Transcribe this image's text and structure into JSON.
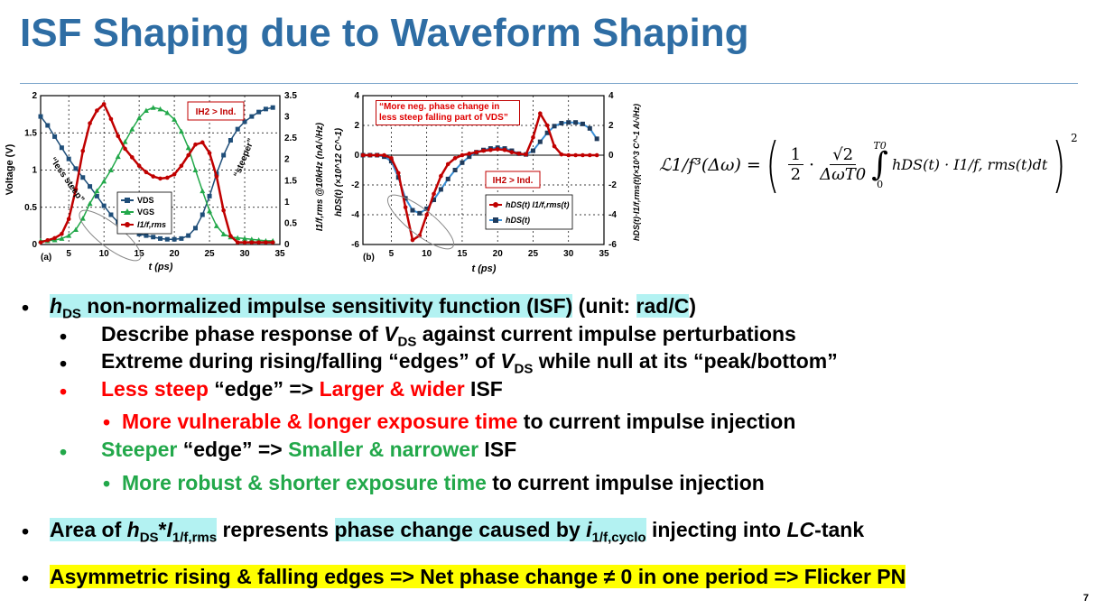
{
  "slide": {
    "title": "ISF Shaping due to Waveform Shaping",
    "page_number": "7"
  },
  "figure_a": {
    "panel": "(a)",
    "y_left_label": "Voltage (V)",
    "y_right_label": "I1/f,rms @10kHz (nA/√Hz)",
    "x_label": "t (ps)",
    "y_left_ticks": [
      "2",
      "1.5",
      "1",
      "0.5",
      "0"
    ],
    "y_right_ticks": [
      "3.5",
      "3",
      "2.5",
      "2",
      "1.5",
      "1",
      "0.5",
      "0"
    ],
    "x_ticks": [
      "5",
      "10",
      "15",
      "20",
      "25",
      "30",
      "35"
    ],
    "annot_box": "IH2 > Ind.",
    "annot_less_steep": "“less steep”",
    "annot_steeper": "“steeper”",
    "legend": [
      "VDS",
      "VGS",
      "I1/f,rms"
    ]
  },
  "figure_b": {
    "panel": "(b)",
    "y_left_label": "hDS(t) (×10^12 C^-1)",
    "y_right_label": "hDS(t)·I1/f,rms(t)(×10^3 C^-1 A/√Hz)",
    "x_label": "t (ps)",
    "y_left_ticks": [
      "4",
      "2",
      "0",
      "-2",
      "-4",
      "-6"
    ],
    "y_right_ticks": [
      "4",
      "2",
      "0",
      "-2",
      "-4",
      "-6"
    ],
    "x_ticks": [
      "5",
      "10",
      "15",
      "20",
      "25",
      "30",
      "35"
    ],
    "annot_quote": "“More neg. phase change in less steep falling part of VDS”",
    "annot_box": "IH2 > Ind.",
    "legend": [
      "hDS(t) I1/f,rms(t)",
      "hDS(t)"
    ]
  },
  "formula": {
    "lhs": "ℒ1/f³(Δω) =",
    "frac1_num": "1",
    "frac1_den": "2",
    "frac2_num": "√2",
    "frac2_den": "ΔωT0",
    "integral_upper": "T0",
    "integral_lower": "0",
    "integrand": "hDS(t) · I1/f, rms(t)dt",
    "power": "2"
  },
  "bullets": {
    "b1_h": "h",
    "b1_sub": "DS",
    "b1_hl": " non-normalized impulse sensitivity function (ISF)",
    "b1_rest": " (unit: ",
    "b1_unit": "rad/C",
    "b1_close": ")",
    "s1_a": "Describe phase response of ",
    "s1_v": "V",
    "s1_sub": "DS",
    "s1_b": " against current impulse perturbations",
    "s2_a": "Extreme during rising/falling “edges” of ",
    "s2_v": "V",
    "s2_sub": "DS",
    "s2_b": " while null at its “peak/bottom”",
    "s3_red1": "Less steep",
    "s3_mid": " “edge” => ",
    "s3_red2": "Larger & wider",
    "s3_end": " ISF",
    "t1_red": "More vulnerable & longer exposure time",
    "t1_end": " to current impulse injection",
    "s4_green1": "Steeper",
    "s4_mid": " “edge” => ",
    "s4_green2": "Smaller & narrower",
    "s4_end": " ISF",
    "t2_green": "More robust & shorter exposure time",
    "t2_end": " to current impulse injection",
    "b2_a": "Area of ",
    "b2_h": "h",
    "b2_sub1": "DS",
    "b2_star": "*",
    "b2_i": "I",
    "b2_sub2": "1/f,rms",
    "b2_mid": " represents ",
    "b2_hl": "phase change caused by ",
    "b2_i2": "i",
    "b2_sub3": "1/f,cyclo",
    "b2_end": " injecting into ",
    "b2_lc": "LC",
    "b2_tank": "-tank",
    "b3": "Asymmetric rising & falling edges => Net phase change ≠ 0 in one period => Flicker PN"
  },
  "colors": {
    "title": "#2e6da4",
    "vds": "#1f4e79",
    "vgs": "#22a84a",
    "i1f": "#c00000",
    "red_text": "#ff0000",
    "green_text": "#22a84a",
    "highlight_cyan": "#b3f2f2",
    "highlight_yellow": "#ffff00"
  },
  "chart_data": [
    {
      "type": "line",
      "panel": "(a)",
      "xlabel": "t (ps)",
      "ylabel": "Voltage (V)",
      "ylabel_right": "I1/f,rms @10kHz (nA/√Hz)",
      "xlim": [
        1,
        35
      ],
      "ylim": [
        0,
        2
      ],
      "ylim_right": [
        0,
        3.5
      ],
      "series": [
        {
          "name": "VDS",
          "axis": "left",
          "x": [
            1,
            2,
            3,
            4,
            5,
            6,
            7,
            8,
            9,
            10,
            11,
            12,
            13,
            14,
            15,
            16,
            17,
            18,
            19,
            20,
            21,
            22,
            23,
            24,
            25,
            26,
            27,
            28,
            29,
            30,
            31,
            32,
            33,
            34
          ],
          "y": [
            1.72,
            1.6,
            1.45,
            1.3,
            1.15,
            1.02,
            0.9,
            0.78,
            0.65,
            0.52,
            0.4,
            0.3,
            0.22,
            0.17,
            0.14,
            0.12,
            0.1,
            0.08,
            0.07,
            0.07,
            0.08,
            0.12,
            0.22,
            0.4,
            0.65,
            0.95,
            1.2,
            1.4,
            1.55,
            1.65,
            1.72,
            1.78,
            1.82,
            1.84
          ]
        },
        {
          "name": "VGS",
          "axis": "left",
          "x": [
            1,
            2,
            3,
            4,
            5,
            6,
            7,
            8,
            9,
            10,
            11,
            12,
            13,
            14,
            15,
            16,
            17,
            18,
            19,
            20,
            21,
            22,
            23,
            24,
            25,
            26,
            27,
            28,
            29,
            30,
            31,
            32,
            33,
            34
          ],
          "y": [
            0.05,
            0.05,
            0.06,
            0.08,
            0.12,
            0.2,
            0.35,
            0.55,
            0.72,
            0.85,
            1.0,
            1.18,
            1.38,
            1.55,
            1.7,
            1.8,
            1.84,
            1.82,
            1.77,
            1.68,
            1.52,
            1.3,
            1.0,
            0.72,
            0.45,
            0.25,
            0.14,
            0.1,
            0.09,
            0.08,
            0.07,
            0.06,
            0.05,
            0.05
          ]
        },
        {
          "name": "I1/f,rms",
          "axis": "right",
          "x": [
            1,
            2,
            3,
            4,
            5,
            6,
            7,
            8,
            9,
            10,
            11,
            12,
            13,
            14,
            15,
            16,
            17,
            18,
            19,
            20,
            21,
            22,
            23,
            24,
            25,
            26,
            27,
            28,
            29,
            30,
            31,
            32,
            33,
            34
          ],
          "y": [
            0.05,
            0.1,
            0.15,
            0.25,
            0.6,
            1.3,
            2.2,
            2.85,
            3.15,
            3.3,
            2.95,
            2.55,
            2.25,
            2.05,
            1.85,
            1.7,
            1.6,
            1.55,
            1.57,
            1.65,
            1.85,
            2.1,
            2.35,
            2.4,
            2.15,
            1.6,
            0.8,
            0.2,
            0.05,
            0.05,
            0.05,
            0.05,
            0.05,
            0.05
          ]
        }
      ]
    },
    {
      "type": "line",
      "panel": "(b)",
      "xlabel": "t (ps)",
      "ylabel": "hDS(t) (×10^12 C^-1)",
      "ylabel_right": "hDS(t)·I1/f,rms(t)(×10^3 C^-1 A/√Hz)",
      "xlim": [
        1,
        35
      ],
      "ylim": [
        -6,
        4
      ],
      "ylim_right": [
        -6,
        4
      ],
      "series": [
        {
          "name": "hDS(t)",
          "axis": "left",
          "x": [
            1,
            2,
            3,
            4,
            5,
            6,
            7,
            8,
            9,
            10,
            11,
            12,
            13,
            14,
            15,
            16,
            17,
            18,
            19,
            20,
            21,
            22,
            23,
            24,
            25,
            26,
            27,
            28,
            29,
            30,
            31,
            32,
            33,
            34
          ],
          "y": [
            0,
            0,
            0,
            -0.1,
            -0.4,
            -1.5,
            -2.9,
            -3.7,
            -3.9,
            -3.6,
            -3.0,
            -2.3,
            -1.6,
            -1.0,
            -0.5,
            -0.1,
            0.2,
            0.35,
            0.45,
            0.5,
            0.45,
            0.3,
            0.1,
            0.05,
            0.3,
            0.9,
            1.5,
            1.95,
            2.15,
            2.2,
            2.2,
            2.1,
            1.8,
            1.1
          ]
        },
        {
          "name": "hDS(t) I1/f,rms(t)",
          "axis": "right",
          "x": [
            1,
            2,
            3,
            4,
            5,
            6,
            7,
            8,
            9,
            10,
            11,
            12,
            13,
            14,
            15,
            16,
            17,
            18,
            19,
            20,
            21,
            22,
            23,
            24,
            25,
            26,
            27,
            28,
            29,
            30,
            31,
            32,
            33,
            34
          ],
          "y": [
            0,
            0,
            0,
            0,
            -0.2,
            -1.2,
            -3.5,
            -5.7,
            -5.4,
            -4.0,
            -2.6,
            -1.4,
            -0.6,
            -0.2,
            0,
            0.1,
            0.2,
            0.3,
            0.35,
            0.4,
            0.35,
            0.2,
            0.1,
            0.05,
            1.2,
            2.8,
            2.0,
            0.6,
            0.05,
            0,
            0,
            0,
            0,
            0
          ]
        }
      ]
    }
  ]
}
